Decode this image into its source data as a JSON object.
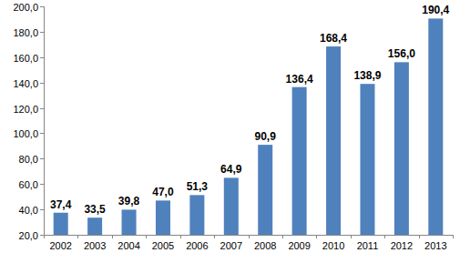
{
  "chart_data": {
    "type": "bar",
    "categories": [
      "2002",
      "2003",
      "2004",
      "2005",
      "2006",
      "2007",
      "2008",
      "2009",
      "2010",
      "2011",
      "2012",
      "2013"
    ],
    "values": [
      37.4,
      33.5,
      39.8,
      47.0,
      51.3,
      64.9,
      90.9,
      136.4,
      168.4,
      138.9,
      156.0,
      190.4
    ],
    "value_labels": [
      "37,4",
      "33,5",
      "39,8",
      "47,0",
      "51,3",
      "64,9",
      "90,9",
      "136,4",
      "168,4",
      "138,9",
      "156,0",
      "190,4"
    ],
    "color": "#4f81bd",
    "ylim": [
      20,
      200
    ],
    "yticks": [
      {
        "value": 20,
        "label": "20,0"
      },
      {
        "value": 40,
        "label": "40,0"
      },
      {
        "value": 60,
        "label": "60,0"
      },
      {
        "value": 80,
        "label": "80,0"
      },
      {
        "value": 100,
        "label": "100,0"
      },
      {
        "value": 120,
        "label": "120,0"
      },
      {
        "value": 140,
        "label": "140,0"
      },
      {
        "value": 160,
        "label": "160,0"
      },
      {
        "value": 180,
        "label": "180,0"
      },
      {
        "value": 200,
        "label": "200,0"
      }
    ],
    "grid": false,
    "data_labels": true
  }
}
